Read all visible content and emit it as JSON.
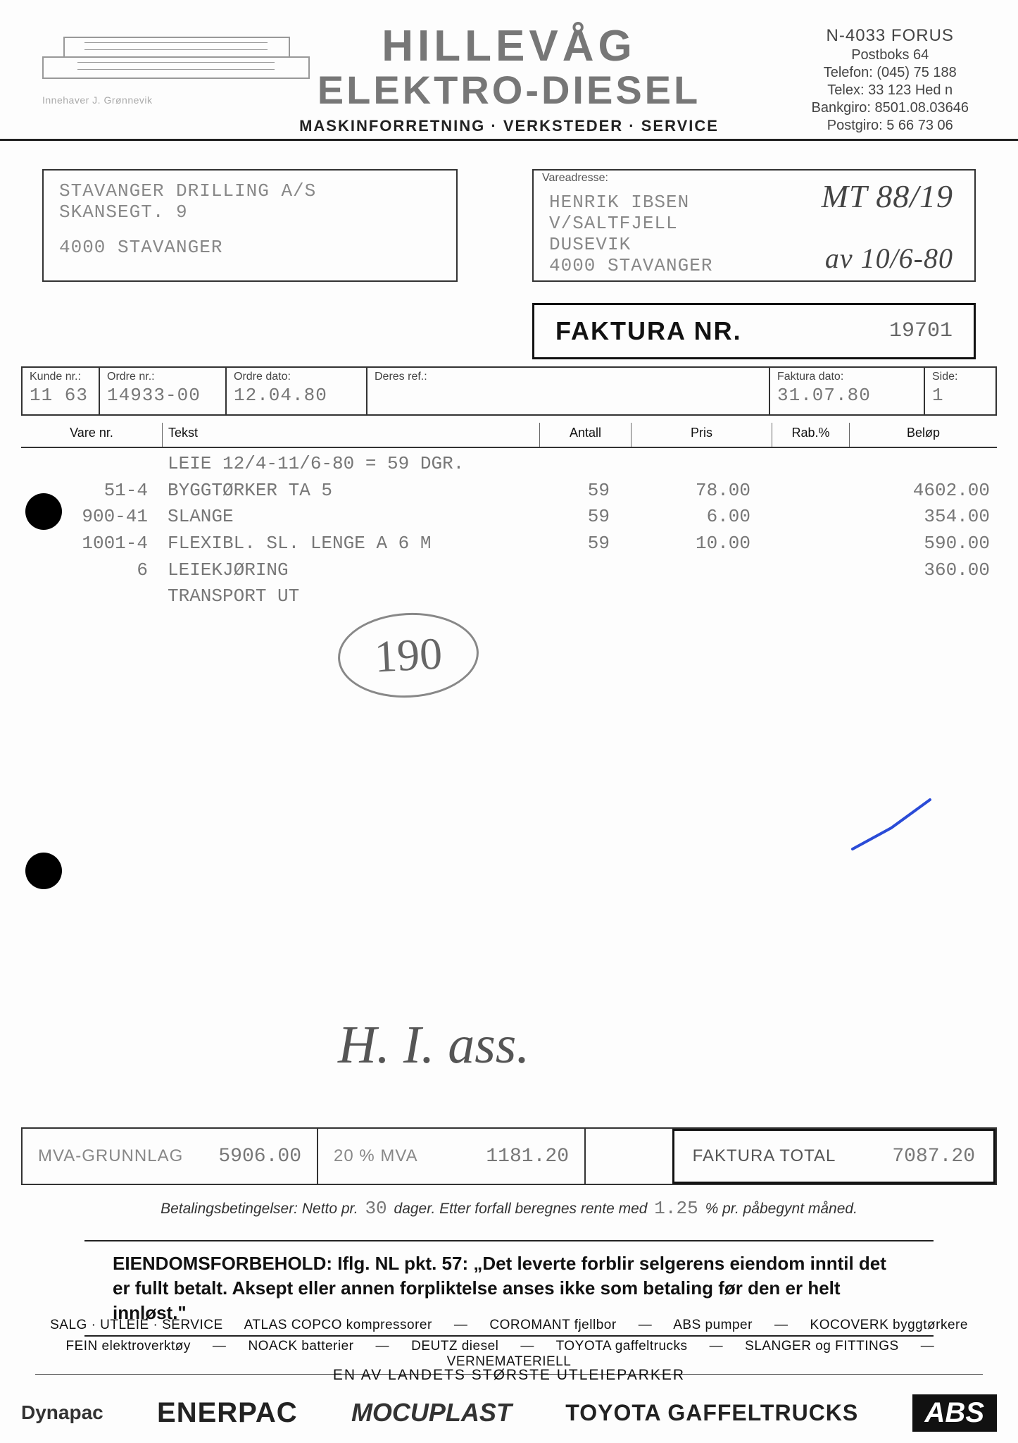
{
  "header": {
    "company_line1": "HILLEVÅG",
    "company_line2": "ELEKTRO-DIESEL",
    "subtitle": "MASKINFORRETNING · VERKSTEDER · SERVICE",
    "owner_caption": "Innehaver J. Grønnevik",
    "address": {
      "l1": "N-4033 FORUS",
      "l2": "Postboks 64",
      "l3": "Telefon: (045) 75 188",
      "l4": "Telex: 33 123 Hed n",
      "l5": "Bankgiro: 8501.08.03646",
      "l6": "Postgiro: 5 66 73 06"
    }
  },
  "bill_to": {
    "l1": "STAVANGER DRILLING A/S",
    "l2": "SKANSEGT. 9",
    "l3": "",
    "l4": "4000 STAVANGER"
  },
  "ship_to": {
    "mini_label": "Vareadresse:",
    "l1": "HENRIK IBSEN",
    "l2": "V/SALTFJELL",
    "l3": "DUSEVIK",
    "l4": "4000 STAVANGER",
    "hand1": "MT 88/19",
    "hand2": "av 10/6-80"
  },
  "faktura": {
    "label": "FAKTURA NR.",
    "nr": "19701"
  },
  "meta": {
    "kunde_label": "Kunde nr.:",
    "kunde": "11 63",
    "ordre_label": "Ordre nr.:",
    "ordre": "14933-00",
    "ordredato_label": "Ordre dato:",
    "ordredato": "12.04.80",
    "deres_label": "Deres ref.:",
    "deres": "",
    "fakturadato_label": "Faktura dato:",
    "fakturadato": "31.07.80",
    "side_label": "Side:",
    "side": "1"
  },
  "cols": {
    "vare": "Vare nr.",
    "tekst": "Tekst",
    "antall": "Antall",
    "pris": "Pris",
    "rab": "Rab.%",
    "belop": "Beløp"
  },
  "items": [
    {
      "vare": "",
      "tekst": "LEIE 12/4-11/6-80 = 59 DGR.",
      "antall": "",
      "pris": "",
      "belop": ""
    },
    {
      "vare": "51-4",
      "tekst": "BYGGTØRKER TA 5",
      "antall": "59",
      "pris": "78.00",
      "belop": "4602.00"
    },
    {
      "vare": "900-41",
      "tekst": "SLANGE",
      "antall": "59",
      "pris": "6.00",
      "belop": "354.00"
    },
    {
      "vare": "1001-4",
      "tekst": "FLEXIBL. SL. LENGE A 6 M",
      "antall": "59",
      "pris": "10.00",
      "belop": "590.00"
    },
    {
      "vare": "6",
      "tekst": "LEIEKJØRING",
      "antall": "",
      "pris": "",
      "belop": "360.00"
    },
    {
      "vare": "",
      "tekst": "TRANSPORT UT",
      "antall": "",
      "pris": "",
      "belop": ""
    }
  ],
  "annotations": {
    "circled": "190",
    "signature": "H. I. ass."
  },
  "totals": {
    "mva_grunnlag_label": "MVA-GRUNNLAG",
    "mva_grunnlag": "5906.00",
    "mva_pct_label": "20 % MVA",
    "mva_amount": "1181.20",
    "total_label": "FAKTURA TOTAL",
    "total": "7087.20"
  },
  "terms": {
    "pre": "Betalingsbetingelser: Netto pr.",
    "days": "30",
    "mid": "dager. Etter forfall beregnes rente med",
    "rate": "1.25",
    "post": "% pr. påbegynt måned."
  },
  "forbehold": "EIENDOMSFORBEHOLD: Iflg. NL pkt. 57: „Det leverte forblir selgerens eiendom inntil det er fullt betalt. Aksept eller annen forpliktelse anses ikke som betaling før den er helt innløst.\"",
  "footer": {
    "line1": "SALG · UTLEIE · SERVICE   ATLAS COPCO kompressorer   —   COROMANT fjellbor   —   ABS pumper   —   KOCOVERK byggtørkere",
    "line2": "FEIN elektroverktøy   —   NOACK batterier   —   DEUTZ diesel   —   TOYOTA gaffeltrucks   —   SLANGER og FITTINGS   —   VERNEMATERIELL",
    "slogan": "EN AV LANDETS STØRSTE UTLEIEPARKER",
    "brand_left": "Dynapac",
    "brand_enerpac": "ENERPAC",
    "brand_mocuplast": "MOCUPLAST",
    "brand_toyota": "TOYOTA GAFFELTRUCKS",
    "brand_abs": "ABS"
  },
  "style": {
    "page_bg": "#fdfdfd",
    "ink": "#111111",
    "faded_ink": "#888888",
    "mono_ink": "#777777",
    "rule": "#333333",
    "blue_tick": "#2a4bd7",
    "title_grey": "#777777"
  }
}
